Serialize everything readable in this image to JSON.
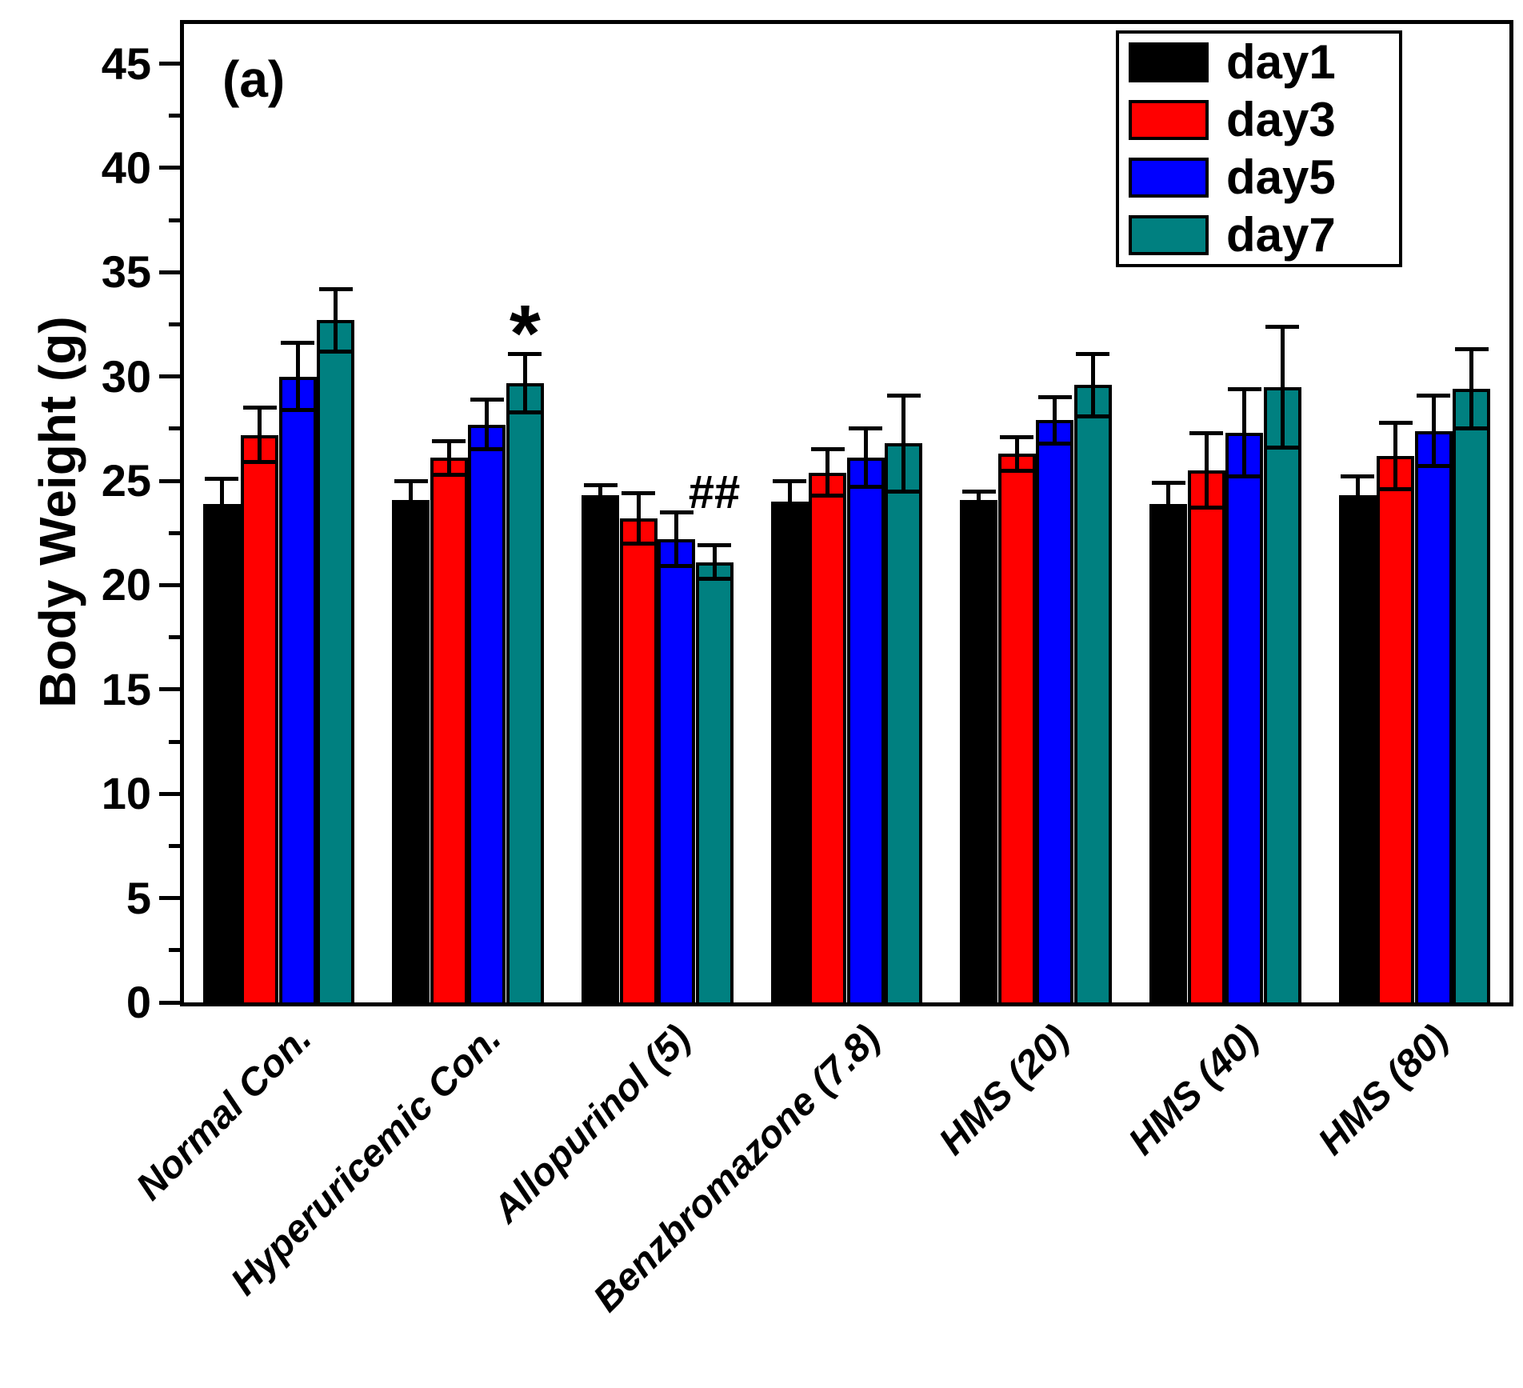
{
  "panel_label": "(a)",
  "y_axis": {
    "title": "Body Weight (g)",
    "major_tick_values": [
      0,
      5,
      10,
      15,
      20,
      25,
      30,
      35,
      40,
      45
    ],
    "minor_tick_values": [
      2.5,
      7.5,
      12.5,
      17.5,
      22.5,
      27.5,
      32.5,
      37.5,
      42.5
    ]
  },
  "colors": {
    "day1": "#000000",
    "day3": "#ff0000",
    "day5": "#0000ff",
    "day7": "#008080",
    "axis": "#000000",
    "background": "#ffffff"
  },
  "chart_data": {
    "type": "bar",
    "title": "",
    "xlabel": "",
    "ylabel": "Body Weight (g)",
    "ylim": [
      0,
      46.9
    ],
    "grid": false,
    "legend_position": "top-right",
    "categories": [
      "Normal Con.",
      "Hyperuricemic Con.",
      "Allopurinol (5)",
      "Benzbromazone (7.8)",
      "HMS (20)",
      "HMS (40)",
      "HMS (80)"
    ],
    "series": [
      {
        "name": "day1",
        "color": "#000000",
        "values": [
          23.9,
          24.1,
          24.3,
          24.0,
          24.1,
          23.9,
          24.3
        ],
        "errors": [
          1.2,
          0.9,
          0.5,
          1.0,
          0.4,
          1.0,
          0.9
        ]
      },
      {
        "name": "day3",
        "color": "#ff0000",
        "values": [
          27.2,
          26.1,
          23.2,
          25.4,
          26.3,
          25.5,
          26.2
        ],
        "errors": [
          1.3,
          0.8,
          1.2,
          1.1,
          0.8,
          1.8,
          1.6
        ]
      },
      {
        "name": "day5",
        "color": "#0000ff",
        "values": [
          30.0,
          27.7,
          22.2,
          26.1,
          27.9,
          27.3,
          27.4
        ],
        "errors": [
          1.6,
          1.2,
          1.3,
          1.4,
          1.1,
          2.1,
          1.7
        ]
      },
      {
        "name": "day7",
        "color": "#008080",
        "values": [
          32.7,
          29.7,
          21.1,
          26.8,
          29.6,
          29.5,
          29.4
        ],
        "errors": [
          1.5,
          1.4,
          0.8,
          2.3,
          1.5,
          2.9,
          1.9
        ]
      }
    ],
    "annotations": [
      {
        "text": "*",
        "category_index": 1,
        "series_index": 3,
        "font_px": 100,
        "dy": -75
      },
      {
        "text": "##",
        "category_index": 2,
        "series_index": 3,
        "font_px": 58,
        "dy": -95
      }
    ]
  }
}
